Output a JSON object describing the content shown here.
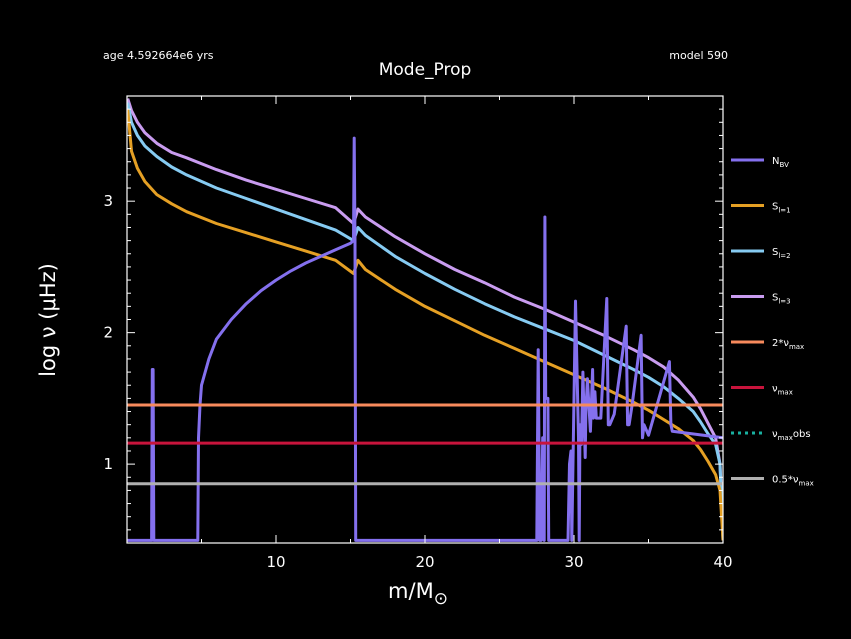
{
  "header": {
    "age_label": "age 4.592664e6 yrs",
    "model_label": "model 590"
  },
  "chart_data": {
    "type": "line",
    "title": "Mode_Prop",
    "xlabel": "m/M",
    "xlabel_sub": "⊙",
    "ylabel": "log ν (μHz)",
    "xlim": [
      0,
      40
    ],
    "ylim": [
      0.4,
      3.8
    ],
    "x_ticks": [
      10,
      20,
      30,
      40
    ],
    "y_ticks": [
      1,
      2,
      3
    ],
    "grid": false,
    "legend_position": "right",
    "colors": {
      "N_BV": "#8470ee",
      "S_l1": "#e5a024",
      "S_l2": "#86cbf2",
      "S_l3": "#c99cf0",
      "two_nu_max": "#f78a5c",
      "nu_max": "#c8143c",
      "nu_max_obs": "#19b0a0",
      "half_nu_max": "#b0b0b0"
    },
    "legend": [
      {
        "key": "N_BV",
        "base": "N",
        "sub": "BV",
        "color": "#8470ee",
        "dash": false
      },
      {
        "key": "S_l1",
        "base": "S",
        "sub": "l=1",
        "color": "#e5a024",
        "dash": false
      },
      {
        "key": "S_l2",
        "base": "S",
        "sub": "l=2",
        "color": "#86cbf2",
        "dash": false
      },
      {
        "key": "S_l3",
        "base": "S",
        "sub": "l=3",
        "color": "#c99cf0",
        "dash": false
      },
      {
        "key": "two_nu_max",
        "base": "2*ν",
        "sub": "max",
        "color": "#f78a5c",
        "dash": false
      },
      {
        "key": "nu_max",
        "base": "ν",
        "sub": "max",
        "color": "#c8143c",
        "dash": false
      },
      {
        "key": "nu_max_obs",
        "base": "ν",
        "sub": "max",
        "suffix": "obs",
        "color": "#19b0a0",
        "dash": true
      },
      {
        "key": "half_nu_max",
        "base": "0.5*ν",
        "sub": "max",
        "color": "#b0b0b0",
        "dash": false
      }
    ],
    "series": [
      {
        "key": "S_l3",
        "color": "#c99cf0",
        "x": [
          0.05,
          0.3,
          0.7,
          1.2,
          2,
          3,
          4,
          6,
          8,
          10,
          12,
          14,
          15.2,
          15.5,
          16,
          18,
          20,
          22,
          24,
          26,
          28,
          30,
          32,
          34,
          35,
          36,
          37,
          38,
          38.5,
          39,
          39.5,
          39.8,
          40
        ],
        "y": [
          3.78,
          3.69,
          3.6,
          3.52,
          3.44,
          3.37,
          3.33,
          3.24,
          3.16,
          3.09,
          3.02,
          2.95,
          2.83,
          2.94,
          2.88,
          2.73,
          2.6,
          2.48,
          2.38,
          2.27,
          2.18,
          2.08,
          1.98,
          1.87,
          1.81,
          1.74,
          1.64,
          1.51,
          1.42,
          1.31,
          1.2,
          1.0,
          0.45
        ]
      },
      {
        "key": "S_l2",
        "color": "#86cbf2",
        "x": [
          0.05,
          0.3,
          0.7,
          1.2,
          2,
          3,
          4,
          6,
          8,
          10,
          12,
          14,
          15.2,
          15.5,
          16,
          18,
          20,
          22,
          24,
          26,
          28,
          30,
          32,
          34,
          35,
          36,
          37,
          38,
          38.5,
          39,
          39.5,
          39.8,
          40
        ],
        "y": [
          3.75,
          3.6,
          3.5,
          3.42,
          3.34,
          3.26,
          3.2,
          3.1,
          3.02,
          2.94,
          2.86,
          2.78,
          2.7,
          2.8,
          2.74,
          2.58,
          2.45,
          2.33,
          2.22,
          2.12,
          2.03,
          1.94,
          1.83,
          1.72,
          1.66,
          1.59,
          1.5,
          1.4,
          1.32,
          1.23,
          1.15,
          1.0,
          0.42
        ]
      },
      {
        "key": "S_l1",
        "color": "#e5a024",
        "x": [
          0.05,
          0.3,
          0.7,
          1.2,
          2,
          3,
          4,
          6,
          8,
          10,
          12,
          14,
          15.2,
          15.5,
          16,
          18,
          20,
          22,
          24,
          26,
          28,
          30,
          32,
          34,
          35,
          36,
          37,
          38,
          38.5,
          39,
          39.5,
          39.8,
          40
        ],
        "y": [
          3.7,
          3.38,
          3.25,
          3.15,
          3.05,
          2.98,
          2.92,
          2.83,
          2.76,
          2.69,
          2.62,
          2.55,
          2.45,
          2.55,
          2.48,
          2.33,
          2.2,
          2.09,
          1.98,
          1.88,
          1.78,
          1.68,
          1.58,
          1.47,
          1.41,
          1.34,
          1.27,
          1.18,
          1.11,
          1.02,
          0.92,
          0.8,
          0.42
        ]
      },
      {
        "key": "N_BV",
        "color": "#8470ee",
        "x": [
          0,
          1.65,
          1.7,
          1.75,
          1.8,
          4.75,
          4.8,
          4.9,
          5,
          5.5,
          6,
          7,
          8,
          9,
          10,
          11,
          12,
          13,
          14,
          15,
          15.2,
          15.25,
          15.3,
          15.35,
          15.45,
          15.6,
          16,
          18,
          20,
          22,
          24,
          26,
          27.5,
          27.6,
          27.7,
          27.8,
          27.9,
          28.0,
          28.05,
          28.1,
          28.25,
          28.3,
          28.4,
          29.6,
          29.7,
          29.8,
          29.85,
          30.1,
          30.3,
          30.35,
          30.4,
          30.5,
          30.6,
          30.75,
          30.8,
          30.9,
          31.1,
          31.25,
          31.3,
          31.4,
          31.5,
          31.8,
          32.2,
          32.3,
          32.4,
          32.7,
          33.5,
          33.6,
          33.7,
          33.9,
          34.5,
          34.6,
          34.7,
          35.0,
          36.4,
          36.5,
          36.6,
          40
        ],
        "y": [
          0.42,
          0.42,
          1.72,
          1.72,
          0.42,
          0.42,
          1.2,
          1.45,
          1.6,
          1.8,
          1.95,
          2.1,
          2.22,
          2.32,
          2.4,
          2.47,
          2.53,
          2.58,
          2.63,
          2.68,
          2.7,
          3.48,
          2.7,
          0.42,
          0.42,
          0.42,
          0.42,
          0.42,
          0.42,
          0.42,
          0.42,
          0.42,
          0.42,
          1.87,
          0.42,
          0.42,
          1.2,
          0.42,
          2.88,
          1.5,
          1.5,
          0.42,
          0.42,
          0.42,
          1.0,
          1.1,
          0.42,
          2.24,
          1.2,
          0.42,
          1.3,
          1.15,
          1.7,
          1.05,
          1.4,
          1.65,
          1.25,
          1.72,
          1.35,
          1.55,
          1.35,
          1.35,
          2.26,
          1.3,
          1.3,
          1.38,
          2.05,
          1.3,
          1.3,
          1.45,
          1.98,
          1.2,
          1.3,
          1.22,
          1.78,
          1.3,
          1.25,
          1.2
        ]
      },
      {
        "key": "two_nu_max",
        "color": "#f78a5c",
        "x": [
          0,
          40
        ],
        "y": [
          1.45,
          1.45
        ]
      },
      {
        "key": "nu_max",
        "color": "#c8143c",
        "x": [
          0,
          40
        ],
        "y": [
          1.16,
          1.16
        ]
      },
      {
        "key": "half_nu_max",
        "color": "#b0b0b0",
        "x": [
          0,
          40
        ],
        "y": [
          0.85,
          0.85
        ]
      }
    ]
  }
}
